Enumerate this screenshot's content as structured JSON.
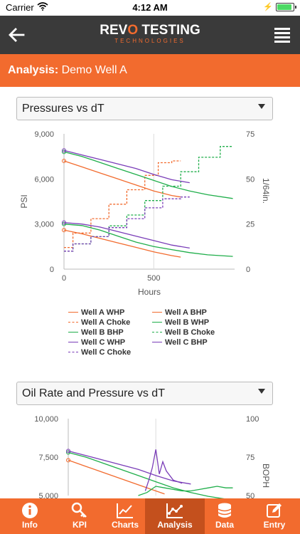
{
  "status": {
    "carrier": "Carrier",
    "time": "4:12 AM"
  },
  "header": {
    "logo_left": "REV",
    "logo_accent": "O",
    "logo_right": "TESTING",
    "logo_sub": "TECHNOLOGIES"
  },
  "page": {
    "title_prefix": "Analysis:",
    "title_value": "Demo Well A"
  },
  "charts": [
    {
      "selector_label": "Pressures vs dT",
      "chart_data": {
        "type": "line",
        "xlabel": "Hours",
        "ylabel": "PSI",
        "y2label": "1/64in.",
        "xlim": [
          0,
          950
        ],
        "ylim": [
          0,
          9000
        ],
        "y2lim": [
          0,
          75
        ],
        "x_ticks": [
          "0",
          "500"
        ],
        "y_ticks": [
          "0",
          "3,000",
          "6,000",
          "9,000"
        ],
        "y2_ticks": [
          "0",
          "25",
          "50",
          "75"
        ],
        "series": [
          {
            "name": "Well A WHP",
            "color": "#f26b2e",
            "dashed": false,
            "axis": "left",
            "x": [
              0,
              100,
              200,
              300,
              400,
              500,
              600,
              650
            ],
            "y": [
              2600,
              2350,
              2050,
              1750,
              1450,
              1150,
              900,
              800
            ]
          },
          {
            "name": "Well A BHP",
            "color": "#f26b2e",
            "dashed": false,
            "axis": "left",
            "x": [
              0,
              100,
              200,
              300,
              400,
              500,
              600,
              650
            ],
            "y": [
              7200,
              6800,
              6400,
              6000,
              5600,
              5200,
              4900,
              4800
            ]
          },
          {
            "name": "Well A Choke",
            "color": "#f26b2e",
            "dashed": true,
            "axis": "right",
            "x": [
              0,
              100,
              200,
              300,
              400,
              500,
              550,
              650
            ],
            "y": [
              12,
              20,
              28,
              36,
              44,
              52,
              59,
              60
            ]
          },
          {
            "name": "Well B WHP",
            "color": "#1fae4a",
            "dashed": false,
            "axis": "left",
            "x": [
              0,
              100,
              200,
              300,
              400,
              500,
              600,
              700,
              800,
              940
            ],
            "y": [
              3000,
              2900,
              2600,
              2200,
              1800,
              1500,
              1300,
              1100,
              950,
              850
            ]
          },
          {
            "name": "Well B BHP",
            "color": "#1fae4a",
            "dashed": false,
            "axis": "left",
            "x": [
              0,
              100,
              200,
              300,
              400,
              500,
              600,
              700,
              800,
              940
            ],
            "y": [
              7800,
              7500,
              7100,
              6700,
              6300,
              5900,
              5500,
              5200,
              4950,
              4700
            ]
          },
          {
            "name": "Well B Choke",
            "color": "#1fae4a",
            "dashed": true,
            "axis": "right",
            "x": [
              0,
              100,
              200,
              300,
              400,
              500,
              600,
              700,
              800,
              940
            ],
            "y": [
              10,
              14,
              18,
              24,
              30,
              38,
              46,
              54,
              62,
              68
            ]
          },
          {
            "name": "Well C WHP",
            "color": "#7a3db8",
            "dashed": false,
            "axis": "left",
            "x": [
              0,
              100,
              200,
              300,
              400,
              500,
              600,
              700
            ],
            "y": [
              3100,
              3000,
              2800,
              2500,
              2200,
              1900,
              1600,
              1400
            ]
          },
          {
            "name": "Well C BHP",
            "color": "#7a3db8",
            "dashed": false,
            "axis": "left",
            "x": [
              0,
              100,
              200,
              300,
              400,
              500,
              600,
              700
            ],
            "y": [
              7900,
              7600,
              7300,
              7000,
              6700,
              6300,
              5950,
              5750
            ]
          },
          {
            "name": "Well C Choke",
            "color": "#7a3db8",
            "dashed": true,
            "axis": "right",
            "x": [
              0,
              100,
              200,
              300,
              400,
              500,
              600,
              700
            ],
            "y": [
              10,
              14,
              18,
              23,
              28,
              34,
              39,
              40
            ]
          }
        ]
      }
    },
    {
      "selector_label": "Oil Rate and Pressure vs dT",
      "chart_data": {
        "type": "line",
        "y2label": "BOPH",
        "ylim": [
          5000,
          10000
        ],
        "y2lim": [
          50,
          100
        ],
        "y_ticks": [
          "5,000",
          "7,500",
          "10,000"
        ],
        "y2_ticks": [
          "50",
          "75",
          "100"
        ],
        "series": [
          {
            "color": "#f26b2e",
            "axis": "left",
            "x": [
              0,
              100,
              200,
              300,
              400,
              500,
              550
            ],
            "y": [
              7300,
              6900,
              6500,
              6100,
              5700,
              5300,
              5100
            ]
          },
          {
            "color": "#1fae4a",
            "axis": "left",
            "x": [
              0,
              100,
              200,
              300,
              400,
              500,
              600,
              700,
              800,
              940
            ],
            "y": [
              7800,
              7500,
              7100,
              6700,
              6300,
              5900,
              5500,
              5200,
              4950,
              4700
            ]
          },
          {
            "color": "#7a3db8",
            "axis": "left",
            "x": [
              0,
              100,
              200,
              300,
              400,
              500,
              600,
              700
            ],
            "y": [
              7900,
              7600,
              7300,
              7000,
              6700,
              6300,
              5950,
              5750
            ]
          },
          {
            "color": "#7a3db8",
            "axis": "right",
            "x": [
              440,
              460,
              480,
              500,
              520,
              540,
              560,
              600,
              650
            ],
            "y": [
              53,
              60,
              68,
              80,
              64,
              72,
              66,
              60,
              58
            ]
          },
          {
            "color": "#1fae4a",
            "axis": "right",
            "x": [
              400,
              450,
              500,
              550,
              600,
              650,
              700,
              750,
              800,
              850,
              900,
              940
            ],
            "y": [
              50,
              52,
              56,
              55,
              54,
              53,
              53,
              54,
              55,
              56,
              55,
              55
            ]
          }
        ]
      }
    }
  ],
  "tabs": [
    {
      "label": "Info",
      "icon": "info-icon"
    },
    {
      "label": "KPI",
      "icon": "key-icon"
    },
    {
      "label": "Charts",
      "icon": "line-chart-icon"
    },
    {
      "label": "Analysis",
      "icon": "analysis-icon",
      "active": true
    },
    {
      "label": "Data",
      "icon": "database-icon"
    },
    {
      "label": "Entry",
      "icon": "edit-icon"
    }
  ]
}
